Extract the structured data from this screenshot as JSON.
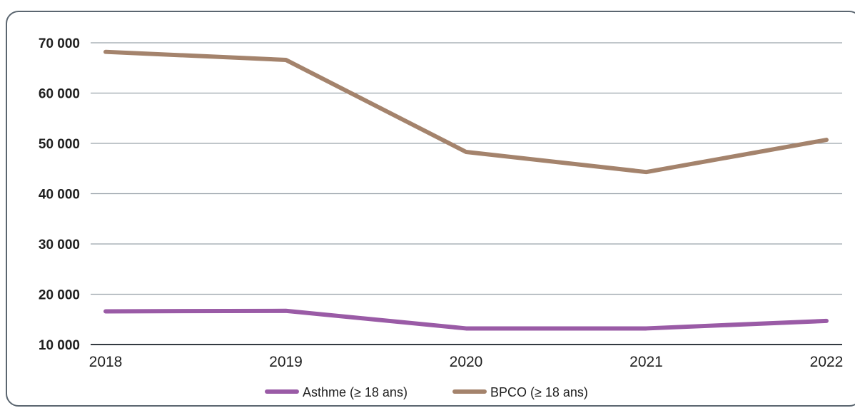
{
  "chart_data": {
    "type": "line",
    "title": "",
    "xlabel": "",
    "ylabel": "",
    "categories": [
      "2018",
      "2019",
      "2020",
      "2021",
      "2022"
    ],
    "y_ticks": [
      10000,
      20000,
      30000,
      40000,
      50000,
      60000,
      70000
    ],
    "y_tick_labels": [
      "10 000",
      "20 000",
      "30 000",
      "40 000",
      "50 000",
      "60 000",
      "70 000"
    ],
    "ylim": [
      10000,
      70000
    ],
    "grid": true,
    "legend_position": "bottom-center",
    "series": [
      {
        "name": "Asthme (≥ 18 ans)",
        "color": "#9a5ba6",
        "values": [
          16600,
          16700,
          13200,
          13200,
          14700
        ]
      },
      {
        "name": "BPCO (≥ 18 ans)",
        "color": "#a4836c",
        "values": [
          68200,
          66600,
          48300,
          44300,
          50700
        ]
      }
    ]
  }
}
